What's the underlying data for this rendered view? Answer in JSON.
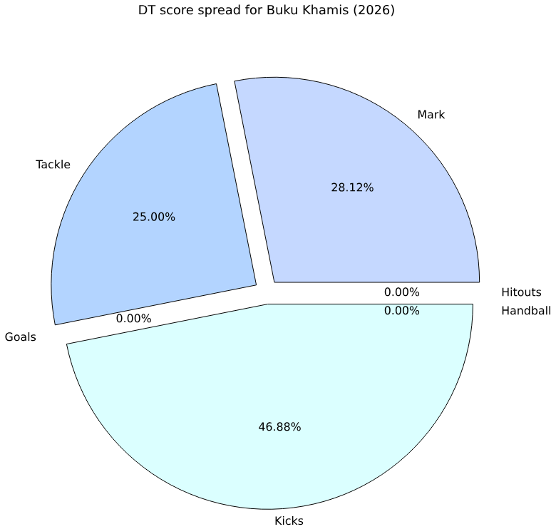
{
  "chart_data": {
    "type": "pie",
    "title": "DT score spread for Buku Khamis (2026)",
    "categories": [
      "Mark",
      "Tackle",
      "Goals",
      "Kicks",
      "Hitouts",
      "Handball"
    ],
    "values": [
      28.12,
      25.0,
      0,
      46.88,
      0,
      0
    ],
    "colors": [
      "#c5d8ff",
      "#b3d4ff",
      "#c0c0ff",
      "#dbffff",
      "#d0e8ff",
      "#e0e0ff"
    ],
    "value_labels": [
      "28.12%",
      "25.00%",
      "0.00%",
      "46.88%",
      "0.00%",
      "0.00%"
    ]
  }
}
